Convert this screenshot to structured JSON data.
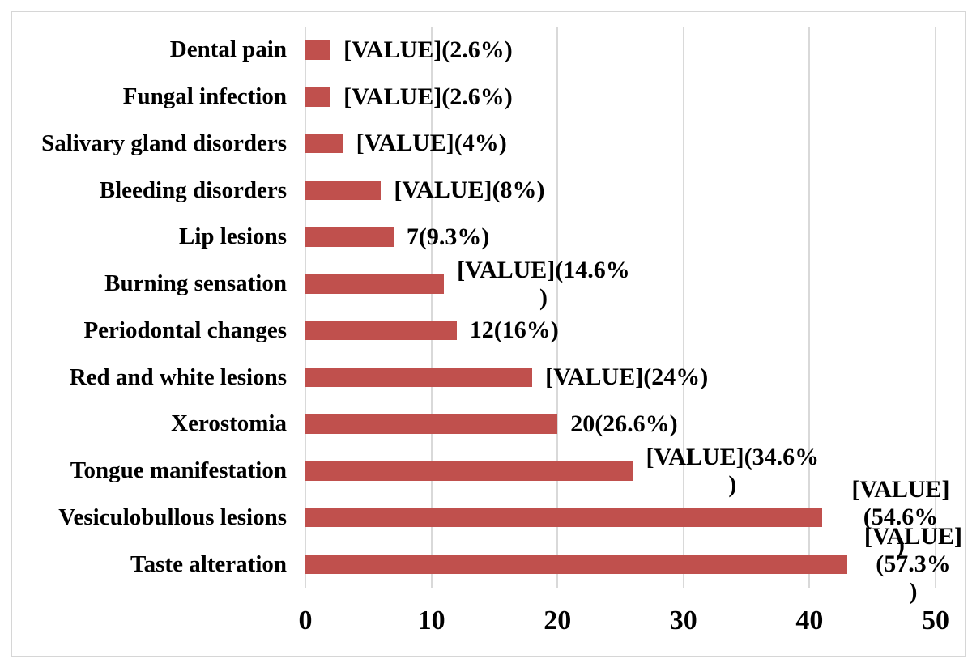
{
  "chart_data": {
    "type": "bar",
    "orientation": "horizontal",
    "title": "",
    "xlabel": "",
    "ylabel": "",
    "categories": [
      "Dental pain",
      "Fungal infection",
      "Salivary gland disorders",
      "Bleeding disorders",
      "Lip lesions",
      "Burning sensation",
      "Periodontal changes",
      "Red and white lesions",
      "Xerostomia",
      "Tongue manifestation",
      "Vesiculobullous lesions",
      "Taste alteration"
    ],
    "values": [
      2,
      2,
      3,
      6,
      7,
      11,
      12,
      18,
      20,
      26,
      41,
      43
    ],
    "percentages": [
      2.6,
      2.6,
      4,
      8,
      9.3,
      14.6,
      16,
      24,
      26.6,
      34.6,
      54.6,
      57.3
    ],
    "data_labels": [
      "[VALUE](2.6%)",
      "[VALUE](2.6%)",
      "[VALUE](4%)",
      "[VALUE](8%)",
      "7(9.3%)",
      "[VALUE](14.6%\n)",
      "12(16%)",
      "[VALUE](24%)",
      "20(26.6%)",
      "[VALUE](34.6%\n)",
      "[VALUE](54.6%\n)",
      "[VALUE](57.3%\n)"
    ],
    "x_ticks": [
      "0",
      "10",
      "20",
      "30",
      "40",
      "50"
    ],
    "x_tick_values": [
      0,
      10,
      20,
      30,
      40,
      50
    ],
    "xlim": [
      0,
      50
    ],
    "grid": true,
    "legend": "none",
    "colors": {
      "bar": "#C0504D",
      "gridline": "#D9D9D9",
      "border": "#D6D6D6",
      "text": "#000000",
      "background": "#FFFFFF"
    }
  }
}
